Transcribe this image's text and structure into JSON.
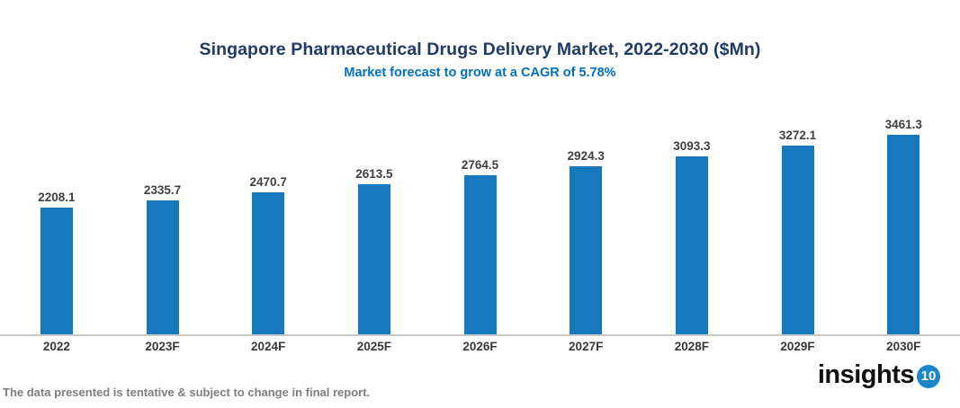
{
  "header": {
    "title": "Singapore Pharmaceutical Drugs Delivery Market, 2022-2030 ($Mn)",
    "subtitle": "Market forecast to grow at a CAGR of 5.78%",
    "title_color": "#1f3b66",
    "subtitle_color": "#0070c0"
  },
  "chart_data": {
    "type": "bar",
    "categories": [
      "2022",
      "2023F",
      "2024F",
      "2025F",
      "2026F",
      "2027F",
      "2028F",
      "2029F",
      "2030F"
    ],
    "values": [
      2208.1,
      2335.7,
      2470.7,
      2613.5,
      2764.5,
      2924.3,
      3093.3,
      3272.1,
      3461.3
    ],
    "title": "Singapore Pharmaceutical Drugs Delivery Market, 2022-2030 ($Mn)",
    "subtitle": "Market forecast to grow at a CAGR of 5.78%",
    "xlabel": "",
    "ylabel": "",
    "ylim": [
      0,
      3600
    ],
    "grid": false,
    "legend": false,
    "data_labels": true,
    "bar_color": "#1878be",
    "value_label_color": "#404040",
    "axis_label_color": "#383838",
    "axis_line_color": "#c9c9c9"
  },
  "footer": {
    "disclaimer": "The data presented is tentative & subject to change in final report.",
    "logo_text": "insights",
    "logo_badge": "10",
    "logo_badge_color": "#1d86c8"
  }
}
